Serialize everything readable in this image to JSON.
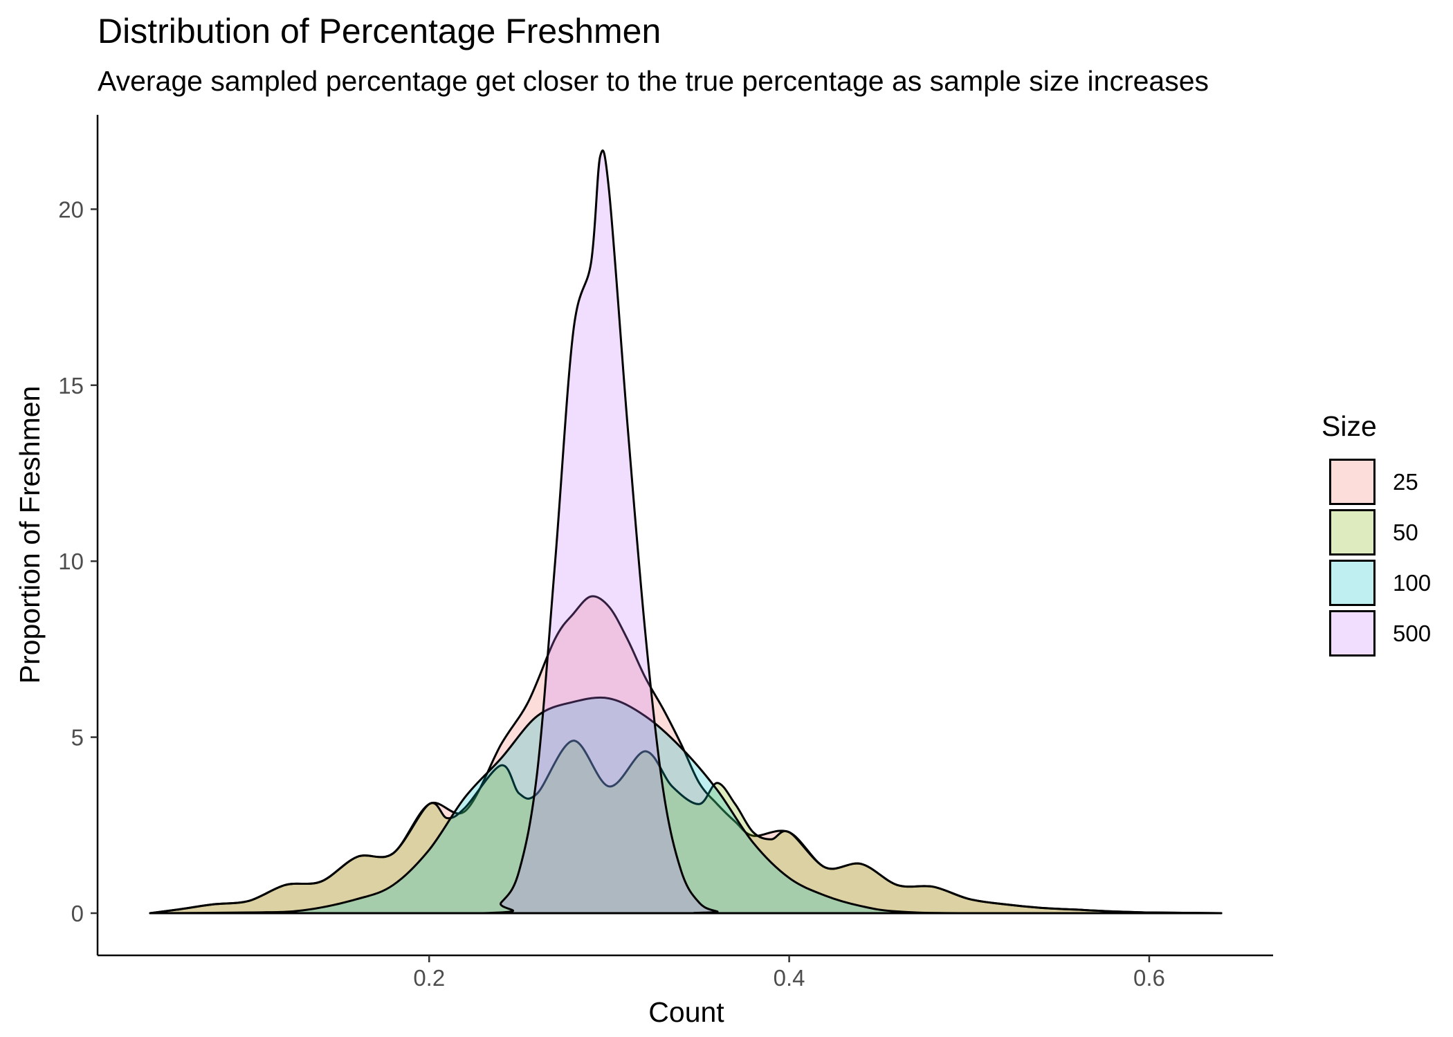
{
  "chart_data": {
    "type": "area",
    "title": "Distribution of Percentage Freshmen",
    "subtitle": "Average sampled percentage get closer to the true percentage as sample size increases",
    "xlabel": "Count",
    "ylabel": "Proportion of Freshmen",
    "xlim": [
      0.045,
      0.64
    ],
    "ylim": [
      0,
      21.6
    ],
    "x_ticks": [
      {
        "value": 0.2,
        "label": "0.2"
      },
      {
        "value": 0.4,
        "label": "0.4"
      },
      {
        "value": 0.6,
        "label": "0.6"
      }
    ],
    "y_ticks": [
      {
        "value": 0,
        "label": "0"
      },
      {
        "value": 5,
        "label": "5"
      },
      {
        "value": 10,
        "label": "10"
      },
      {
        "value": 15,
        "label": "15"
      },
      {
        "value": 20,
        "label": "20"
      }
    ],
    "grid": false,
    "legend": {
      "title": "Size",
      "position": "right"
    },
    "series": [
      {
        "name": "25",
        "color": "#F8766D",
        "points": [
          [
            0.045,
            0.0
          ],
          [
            0.06,
            0.1
          ],
          [
            0.08,
            0.25
          ],
          [
            0.1,
            0.35
          ],
          [
            0.12,
            0.8
          ],
          [
            0.14,
            0.9
          ],
          [
            0.16,
            1.6
          ],
          [
            0.18,
            1.7
          ],
          [
            0.2,
            3.1
          ],
          [
            0.22,
            2.9
          ],
          [
            0.24,
            4.8
          ],
          [
            0.255,
            6.0
          ],
          [
            0.27,
            7.8
          ],
          [
            0.28,
            8.5
          ],
          [
            0.29,
            9.0
          ],
          [
            0.3,
            8.7
          ],
          [
            0.31,
            7.8
          ],
          [
            0.32,
            6.7
          ],
          [
            0.33,
            5.8
          ],
          [
            0.34,
            4.8
          ],
          [
            0.35,
            3.7
          ],
          [
            0.36,
            3.1
          ],
          [
            0.37,
            2.6
          ],
          [
            0.38,
            2.2
          ],
          [
            0.4,
            2.3
          ],
          [
            0.42,
            1.3
          ],
          [
            0.44,
            1.4
          ],
          [
            0.46,
            0.8
          ],
          [
            0.48,
            0.75
          ],
          [
            0.5,
            0.4
          ],
          [
            0.52,
            0.25
          ],
          [
            0.54,
            0.15
          ],
          [
            0.56,
            0.1
          ],
          [
            0.58,
            0.05
          ],
          [
            0.6,
            0.02
          ],
          [
            0.64,
            0.0
          ]
        ]
      },
      {
        "name": "50",
        "color": "#7CAE00",
        "points": [
          [
            0.045,
            0.0
          ],
          [
            0.06,
            0.1
          ],
          [
            0.08,
            0.25
          ],
          [
            0.1,
            0.35
          ],
          [
            0.12,
            0.8
          ],
          [
            0.14,
            0.9
          ],
          [
            0.16,
            1.6
          ],
          [
            0.18,
            1.7
          ],
          [
            0.2,
            3.1
          ],
          [
            0.21,
            2.7
          ],
          [
            0.22,
            3.0
          ],
          [
            0.24,
            4.2
          ],
          [
            0.25,
            3.4
          ],
          [
            0.26,
            3.4
          ],
          [
            0.28,
            4.9
          ],
          [
            0.3,
            3.6
          ],
          [
            0.32,
            4.6
          ],
          [
            0.335,
            3.6
          ],
          [
            0.35,
            3.1
          ],
          [
            0.36,
            3.7
          ],
          [
            0.37,
            3.1
          ],
          [
            0.38,
            2.3
          ],
          [
            0.39,
            2.1
          ],
          [
            0.4,
            2.3
          ],
          [
            0.42,
            1.3
          ],
          [
            0.44,
            1.4
          ],
          [
            0.46,
            0.8
          ],
          [
            0.48,
            0.75
          ],
          [
            0.5,
            0.4
          ],
          [
            0.52,
            0.25
          ],
          [
            0.54,
            0.15
          ],
          [
            0.56,
            0.1
          ],
          [
            0.58,
            0.05
          ],
          [
            0.6,
            0.02
          ],
          [
            0.64,
            0.0
          ]
        ]
      },
      {
        "name": "100",
        "color": "#00BFC4",
        "points": [
          [
            0.045,
            0.0
          ],
          [
            0.1,
            0.02
          ],
          [
            0.13,
            0.08
          ],
          [
            0.16,
            0.4
          ],
          [
            0.18,
            0.8
          ],
          [
            0.2,
            1.8
          ],
          [
            0.22,
            3.3
          ],
          [
            0.24,
            4.4
          ],
          [
            0.26,
            5.6
          ],
          [
            0.28,
            6.0
          ],
          [
            0.3,
            6.1
          ],
          [
            0.32,
            5.6
          ],
          [
            0.34,
            4.7
          ],
          [
            0.36,
            3.5
          ],
          [
            0.38,
            2.0
          ],
          [
            0.4,
            1.0
          ],
          [
            0.42,
            0.5
          ],
          [
            0.44,
            0.2
          ],
          [
            0.46,
            0.05
          ],
          [
            0.5,
            0.0
          ],
          [
            0.64,
            0.0
          ]
        ]
      },
      {
        "name": "500",
        "color": "#C77CFF",
        "points": [
          [
            0.045,
            0.0
          ],
          [
            0.23,
            0.0
          ],
          [
            0.24,
            0.3
          ],
          [
            0.25,
            1.2
          ],
          [
            0.26,
            4.0
          ],
          [
            0.27,
            10.0
          ],
          [
            0.28,
            16.5
          ],
          [
            0.29,
            18.5
          ],
          [
            0.295,
            21.5
          ],
          [
            0.3,
            20.5
          ],
          [
            0.31,
            14.0
          ],
          [
            0.32,
            8.0
          ],
          [
            0.33,
            3.5
          ],
          [
            0.34,
            1.2
          ],
          [
            0.35,
            0.3
          ],
          [
            0.36,
            0.05
          ],
          [
            0.37,
            0.0
          ],
          [
            0.64,
            0.0
          ]
        ]
      }
    ]
  }
}
